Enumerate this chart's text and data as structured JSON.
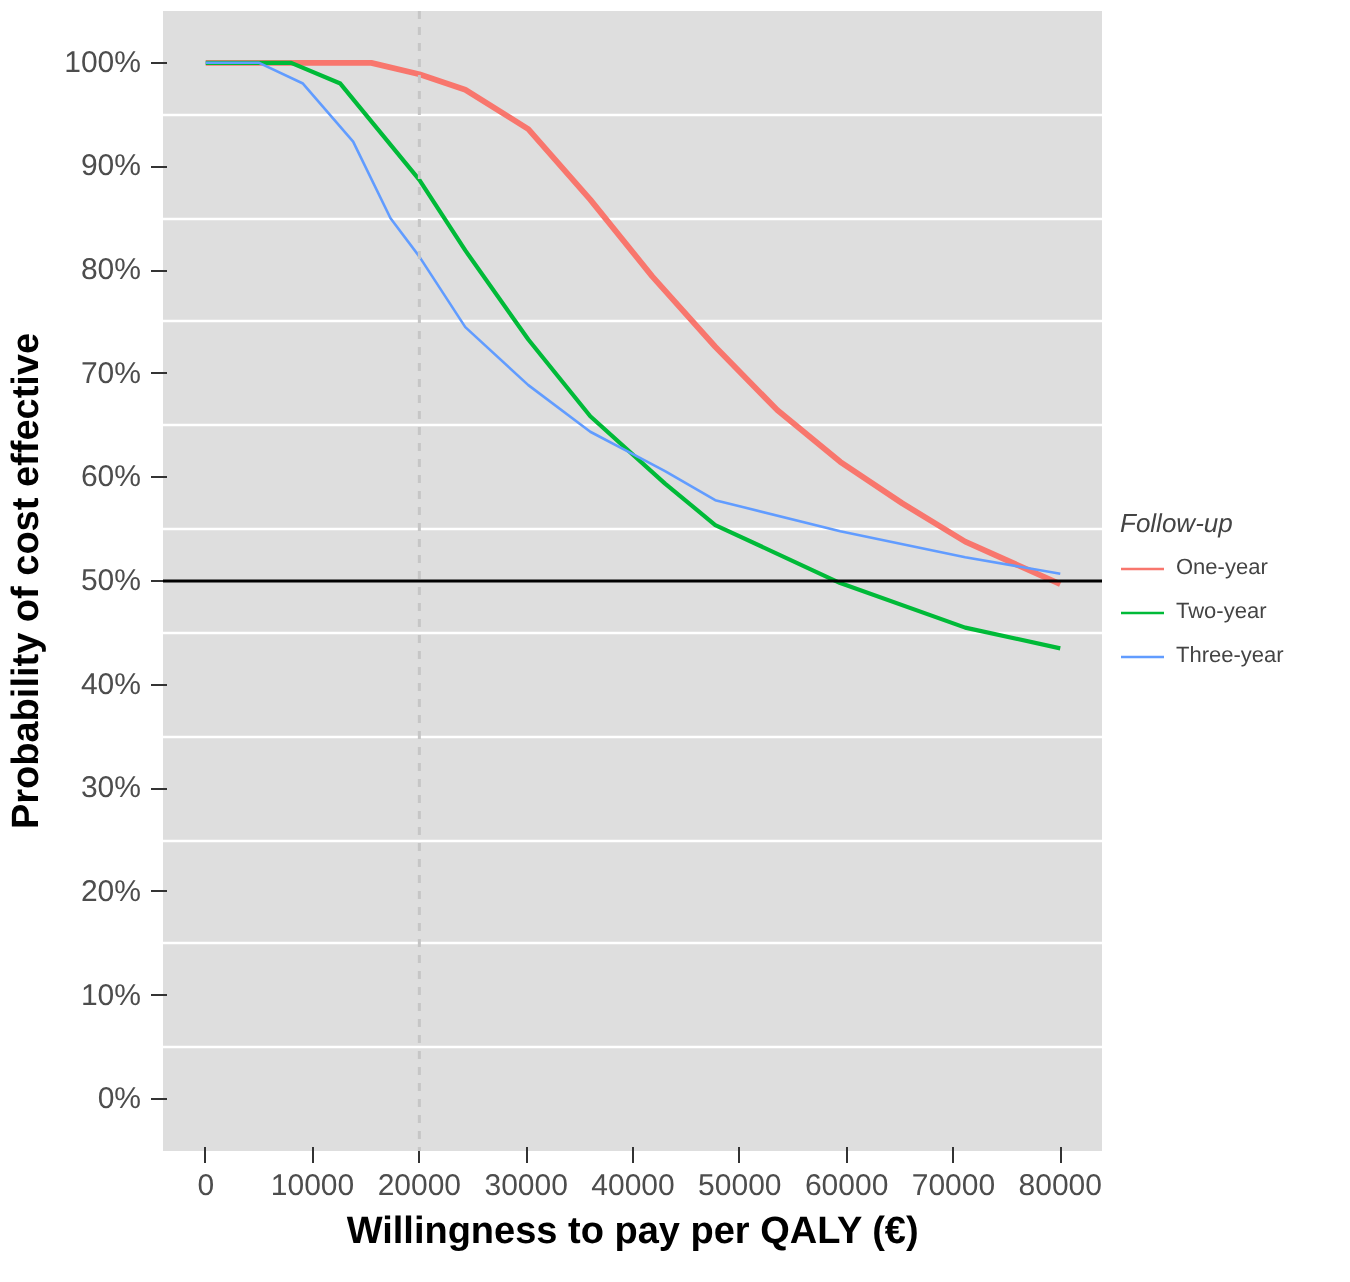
{
  "chart_data": {
    "type": "line",
    "xlabel": "Willingness to pay per QALY (€)",
    "ylabel": "Probability of cost effective",
    "legend_title": "Follow-up",
    "xlim": [
      -4000,
      84000
    ],
    "xticks": [
      0,
      10000,
      20000,
      30000,
      40000,
      50000,
      60000,
      70000,
      80000
    ],
    "ylim": [
      -5,
      105
    ],
    "yticks": [
      {
        "value": 0,
        "label": "0%"
      },
      {
        "value": 10,
        "label": "10%"
      },
      {
        "value": 20,
        "label": "20%"
      },
      {
        "value": 30,
        "label": "30%"
      },
      {
        "value": 40,
        "label": "40%"
      },
      {
        "value": 50,
        "label": "50%"
      },
      {
        "value": 60,
        "label": "60%"
      },
      {
        "value": 70,
        "label": "70%"
      },
      {
        "value": 80,
        "label": "80%"
      },
      {
        "value": 90,
        "label": "90%"
      },
      {
        "value": 100,
        "label": "100%"
      }
    ],
    "grid": "y",
    "legend": "right",
    "line_style": "solid",
    "ref_lines": [
      {
        "axis": "x",
        "value": 20000,
        "label": null,
        "color": "#c6c6c6",
        "line_style": "dashed"
      },
      {
        "axis": "y",
        "value": 50,
        "label": null,
        "color": "#000000",
        "line_style": "solid"
      }
    ],
    "series": [
      {
        "name": "One-year",
        "color": "#f8766d",
        "x": [
          0,
          10000,
          15500,
          20000,
          24300,
          30200,
          36000,
          41800,
          47700,
          53500,
          59400,
          65200,
          71100,
          80000
        ],
        "values": [
          100,
          100,
          100,
          98.9,
          97.4,
          93.6,
          86.8,
          79.4,
          72.6,
          66.5,
          61.5,
          57.5,
          53.8,
          49.7
        ]
      },
      {
        "name": "Two-year",
        "color": "#00ba38",
        "x": [
          0,
          8000,
          12600,
          16100,
          20000,
          24300,
          30200,
          36000,
          43000,
          47700,
          59400,
          71100,
          80000
        ],
        "values": [
          100,
          100,
          98,
          93.6,
          88.7,
          81.9,
          73.3,
          65.9,
          59.4,
          55.4,
          49.8,
          45.5,
          43.5
        ]
      },
      {
        "name": "Three-year",
        "color": "#619cff",
        "x": [
          0,
          5000,
          9100,
          13800,
          17300,
          20000,
          24300,
          30200,
          36000,
          39500,
          43000,
          47700,
          59400,
          71100,
          80000
        ],
        "values": [
          100,
          100,
          98,
          92.4,
          85,
          81.3,
          74.5,
          68.9,
          64.4,
          62.5,
          60.6,
          57.8,
          54.8,
          52.3,
          50.7
        ]
      }
    ]
  }
}
